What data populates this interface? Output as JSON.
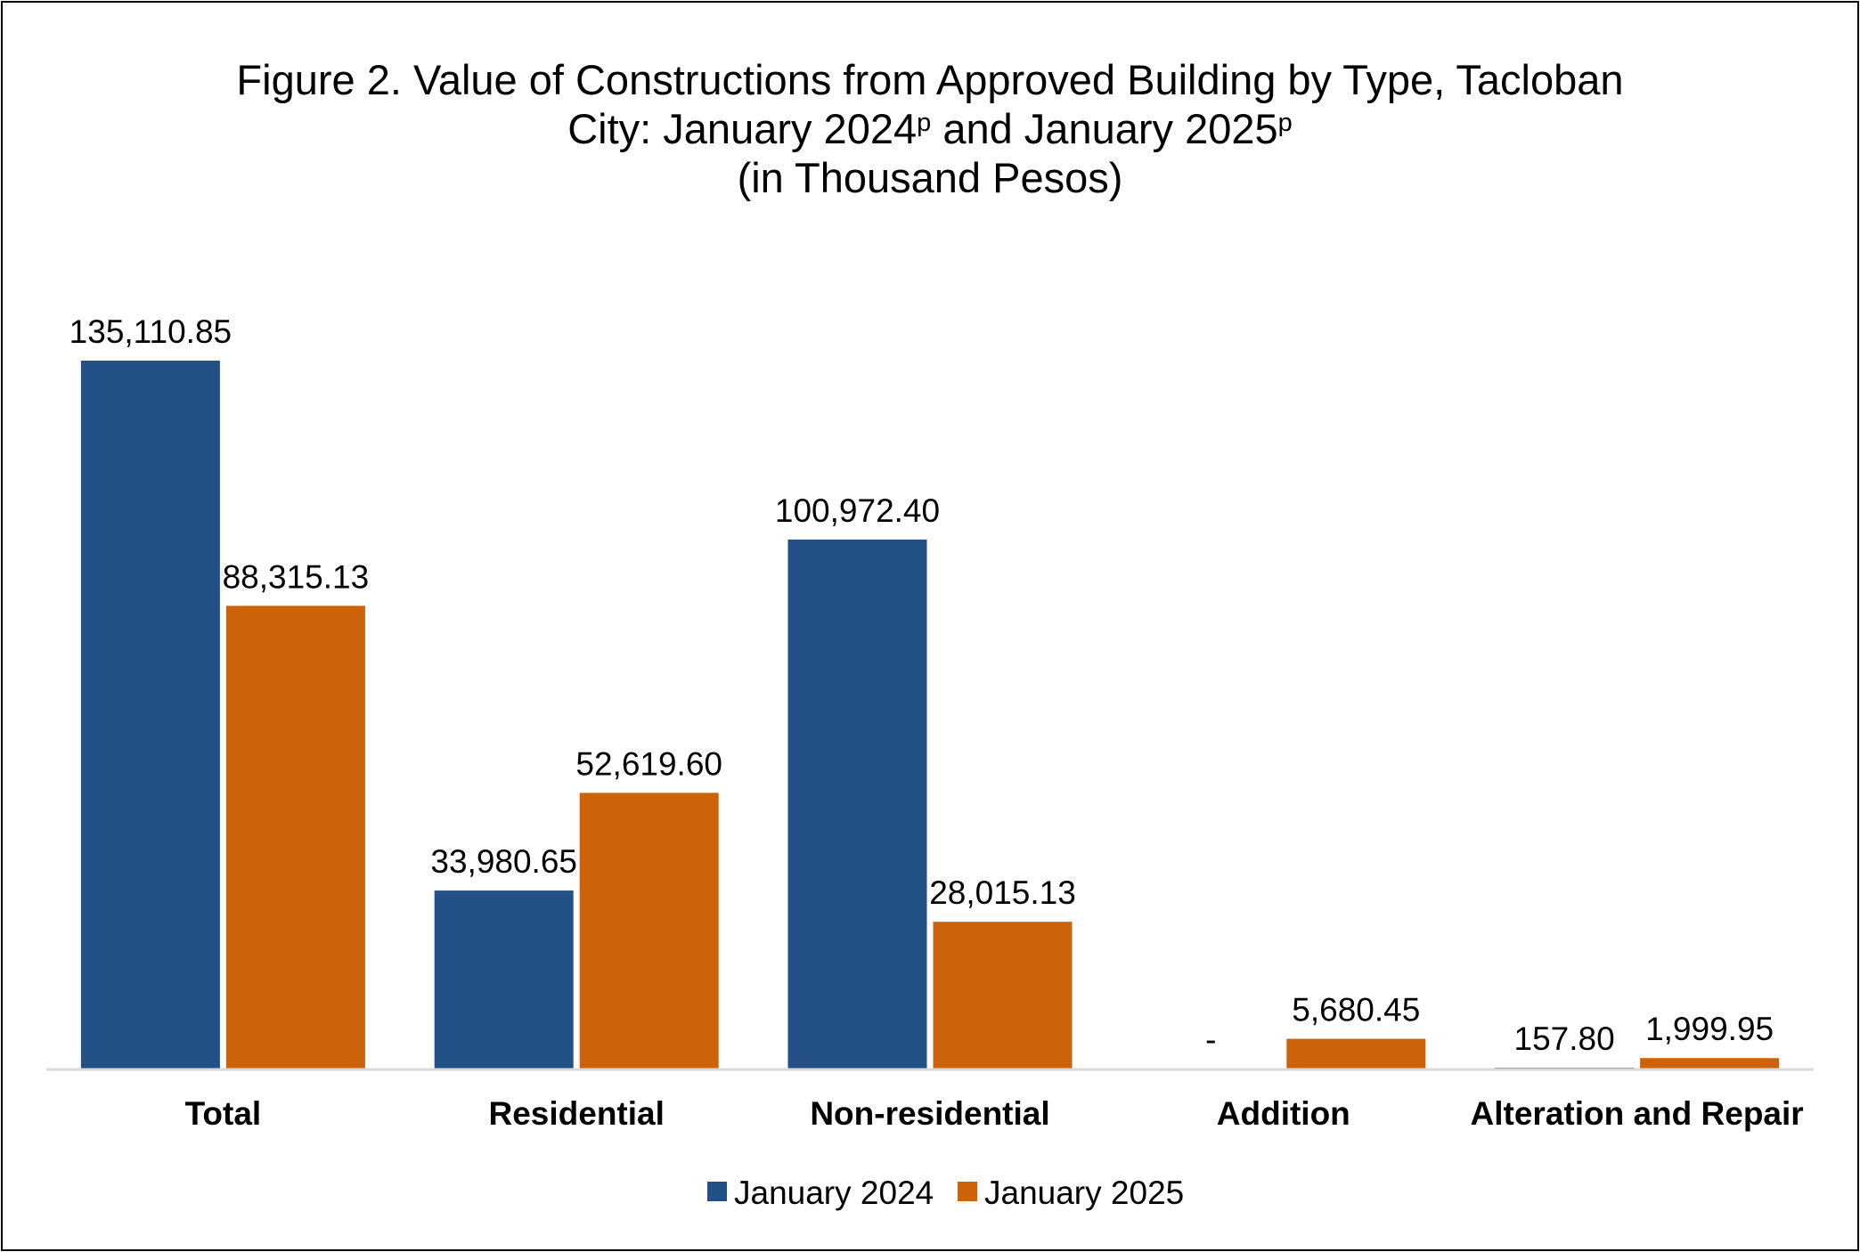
{
  "chart_data": {
    "type": "bar",
    "title_line1": "Figure 2. Value of Constructions from Approved Building by Type, Tacloban",
    "title_line2_a": "City: January 2024",
    "title_line2_sup1": "p",
    "title_line2_b": " and January 2025",
    "title_line2_sup2": "p",
    "title_line3": "(in Thousand Pesos)",
    "categories": [
      "Total",
      "Residential",
      "Non-residential",
      "Addition",
      "Alteration and Repair"
    ],
    "series": [
      {
        "name": "January 2024",
        "color": "#225087",
        "values": [
          135110.85,
          33980.65,
          100972.4,
          0,
          157.8
        ],
        "labels": [
          "135,110.85",
          "33,980.65",
          "100,972.40",
          "-",
          "157.80"
        ]
      },
      {
        "name": "January 2025",
        "color": "#CC620A",
        "values": [
          88315.13,
          52619.6,
          28015.13,
          5680.45,
          1999.95
        ],
        "labels": [
          "88,315.13",
          "52,619.60",
          "28,015.13",
          "5,680.45",
          "1,999.95"
        ]
      }
    ],
    "ylim": [
      0,
      135110.85
    ],
    "grid": false,
    "legend_position": "bottom"
  }
}
